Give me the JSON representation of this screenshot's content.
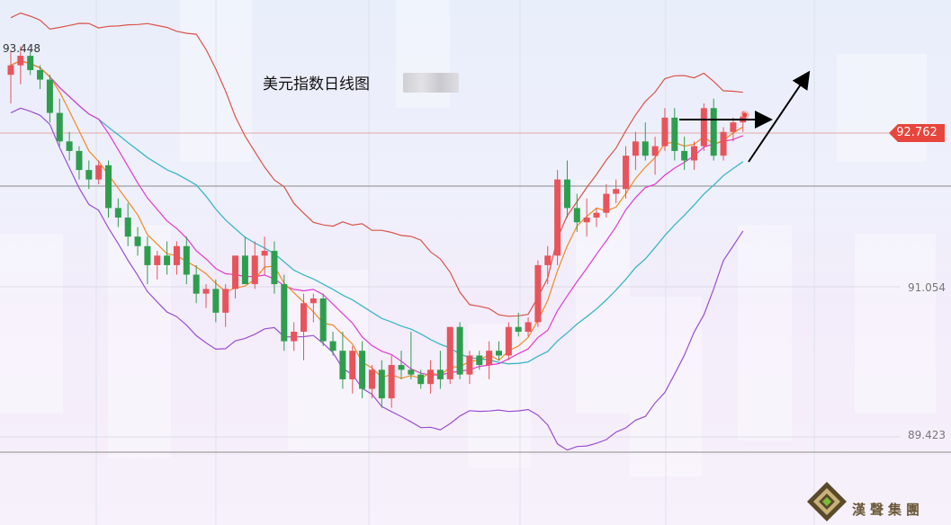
{
  "chart_data": {
    "type": "candlestick",
    "title": "美元指数日线图",
    "high_label": "93.448",
    "last_price": "92.762",
    "y_ticks": [
      "91.054",
      "89.423"
    ],
    "ylim": [
      88.3,
      94.0
    ],
    "colors": {
      "up": "#e8545c",
      "down": "#2e9e4e",
      "upper_band": "#d9544a",
      "lower_band": "#9a4fd0",
      "mid_band": "#3bb6c8",
      "ma_fast": "#f08a24",
      "ma_mid": "#e23ad0"
    },
    "candles": [
      [
        93.2,
        93.46,
        92.9,
        93.3
      ],
      [
        93.3,
        93.5,
        93.1,
        93.4
      ],
      [
        93.4,
        93.45,
        93.2,
        93.25
      ],
      [
        93.25,
        93.3,
        93.05,
        93.15
      ],
      [
        93.15,
        93.2,
        92.7,
        92.8
      ],
      [
        92.8,
        92.95,
        92.45,
        92.5
      ],
      [
        92.5,
        92.6,
        92.3,
        92.4
      ],
      [
        92.4,
        92.45,
        92.1,
        92.2
      ],
      [
        92.2,
        92.3,
        92.0,
        92.1
      ],
      [
        92.1,
        92.3,
        92.05,
        92.25
      ],
      [
        92.25,
        92.3,
        91.7,
        91.8
      ],
      [
        91.8,
        91.9,
        91.6,
        91.7
      ],
      [
        91.7,
        91.85,
        91.4,
        91.5
      ],
      [
        91.5,
        91.6,
        91.3,
        91.4
      ],
      [
        91.4,
        91.5,
        91.0,
        91.2
      ],
      [
        91.2,
        91.35,
        91.05,
        91.3
      ],
      [
        91.3,
        91.45,
        91.1,
        91.2
      ],
      [
        91.2,
        91.45,
        91.1,
        91.4
      ],
      [
        91.4,
        91.5,
        91.0,
        91.1
      ],
      [
        91.1,
        91.2,
        90.8,
        90.9
      ],
      [
        90.9,
        91.0,
        90.75,
        90.95
      ],
      [
        90.95,
        91.05,
        90.6,
        90.7
      ],
      [
        90.7,
        91.0,
        90.55,
        90.95
      ],
      [
        90.95,
        91.3,
        90.85,
        91.3
      ],
      [
        91.3,
        91.5,
        91.0,
        91.0
      ],
      [
        91.0,
        91.45,
        90.95,
        91.3
      ],
      [
        91.3,
        91.5,
        91.1,
        91.35
      ],
      [
        91.35,
        91.45,
        90.9,
        91.0
      ],
      [
        91.0,
        91.1,
        90.3,
        90.4
      ],
      [
        90.4,
        90.6,
        90.3,
        90.5
      ],
      [
        90.5,
        90.9,
        90.2,
        90.8
      ],
      [
        90.8,
        90.9,
        90.6,
        90.85
      ],
      [
        90.85,
        90.9,
        90.35,
        90.4
      ],
      [
        90.4,
        90.5,
        90.25,
        90.3
      ],
      [
        90.3,
        90.5,
        89.9,
        90.0
      ],
      [
        90.0,
        90.35,
        89.85,
        90.3
      ],
      [
        90.3,
        90.4,
        89.8,
        89.9
      ],
      [
        89.9,
        90.15,
        89.8,
        90.1
      ],
      [
        90.1,
        90.2,
        89.7,
        89.8
      ],
      [
        89.8,
        90.25,
        89.7,
        90.15
      ],
      [
        90.15,
        90.3,
        90.0,
        90.1
      ],
      [
        90.1,
        90.5,
        90.0,
        90.05
      ],
      [
        90.05,
        90.1,
        89.9,
        89.95
      ],
      [
        89.95,
        90.2,
        89.85,
        90.1
      ],
      [
        90.1,
        90.3,
        89.9,
        90.0
      ],
      [
        90.0,
        90.55,
        89.95,
        90.55
      ],
      [
        90.55,
        90.6,
        90.0,
        90.05
      ],
      [
        90.05,
        90.3,
        89.95,
        90.25
      ],
      [
        90.25,
        90.3,
        90.1,
        90.15
      ],
      [
        90.15,
        90.4,
        90.0,
        90.3
      ],
      [
        90.3,
        90.4,
        90.2,
        90.25
      ],
      [
        90.25,
        90.6,
        90.2,
        90.55
      ],
      [
        90.55,
        90.7,
        90.45,
        90.5
      ],
      [
        90.5,
        90.65,
        90.45,
        90.6
      ],
      [
        90.6,
        91.25,
        90.55,
        91.2
      ],
      [
        91.2,
        91.4,
        91.0,
        91.3
      ],
      [
        91.3,
        92.2,
        91.2,
        92.1
      ],
      [
        92.1,
        92.3,
        91.7,
        91.8
      ],
      [
        91.8,
        91.95,
        91.55,
        91.65
      ],
      [
        91.65,
        91.9,
        91.5,
        91.7
      ],
      [
        91.7,
        91.8,
        91.6,
        91.75
      ],
      [
        91.75,
        92.05,
        91.7,
        91.95
      ],
      [
        91.95,
        92.1,
        91.85,
        92.0
      ],
      [
        92.0,
        92.45,
        91.9,
        92.35
      ],
      [
        92.35,
        92.6,
        92.2,
        92.5
      ],
      [
        92.5,
        92.7,
        92.3,
        92.35
      ],
      [
        92.35,
        92.55,
        92.15,
        92.45
      ],
      [
        92.45,
        92.85,
        92.4,
        92.75
      ],
      [
        92.75,
        92.85,
        92.3,
        92.4
      ],
      [
        92.4,
        92.55,
        92.2,
        92.3
      ],
      [
        92.3,
        92.5,
        92.2,
        92.45
      ],
      [
        92.45,
        92.9,
        92.4,
        92.85
      ],
      [
        92.85,
        92.95,
        92.3,
        92.35
      ],
      [
        92.35,
        92.65,
        92.3,
        92.6
      ],
      [
        92.6,
        92.75,
        92.5,
        92.7
      ],
      [
        92.7,
        92.82,
        92.6,
        92.76
      ]
    ]
  },
  "logo": {
    "text": "漢聲集團"
  }
}
